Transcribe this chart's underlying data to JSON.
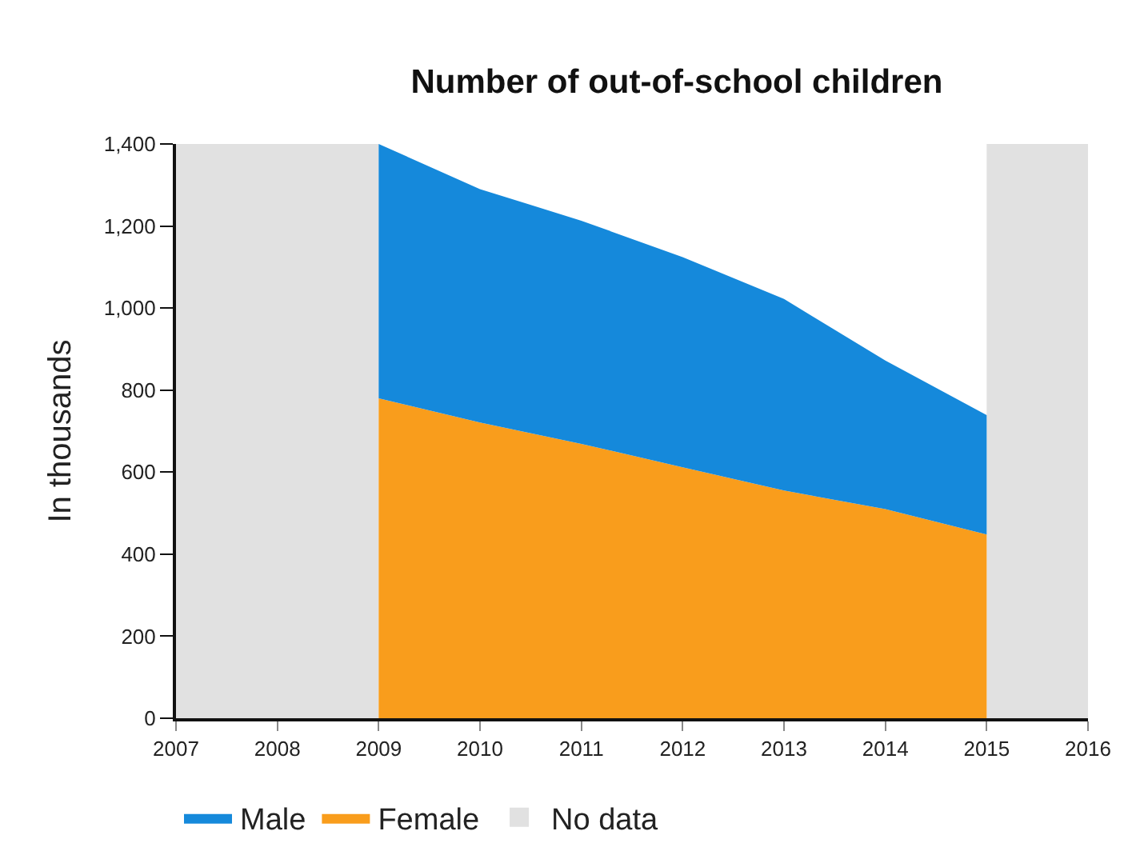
{
  "chart_data": {
    "type": "area",
    "title": "Number of out-of-school children",
    "ylabel": "In thousands",
    "x": [
      2009,
      2010,
      2011,
      2012,
      2013,
      2014,
      2015
    ],
    "series": [
      {
        "name": "Female",
        "color": "#f99d1c",
        "values": [
          780,
          721,
          669,
          612,
          555,
          510,
          448
        ]
      },
      {
        "name": "Male",
        "color": "#1589db",
        "values": [
          620,
          569,
          544,
          512,
          467,
          362,
          291
        ]
      }
    ],
    "stacked": true,
    "xlim": [
      2007,
      2016
    ],
    "xticks": [
      2007,
      2008,
      2009,
      2010,
      2011,
      2012,
      2013,
      2014,
      2015,
      2016
    ],
    "ylim": [
      0,
      1400
    ],
    "yticks": [
      0,
      {
        "value": 200,
        "label": "200"
      },
      {
        "value": 400,
        "label": "400"
      },
      {
        "value": 600,
        "label": "600"
      },
      {
        "value": 800,
        "label": "800"
      },
      {
        "value": 1000,
        "label": "1,000"
      },
      {
        "value": 1200,
        "label": "1,200"
      },
      {
        "value": 1400,
        "label": "1,400"
      }
    ],
    "bands": [
      {
        "axis": "x",
        "from": 2007,
        "to": 2009,
        "label": "No data",
        "color": "#e1e1e1"
      },
      {
        "axis": "x",
        "from": 2015,
        "to": 2016,
        "color": "#e1e1e1"
      }
    ],
    "grid": false,
    "legend": "bottom"
  }
}
